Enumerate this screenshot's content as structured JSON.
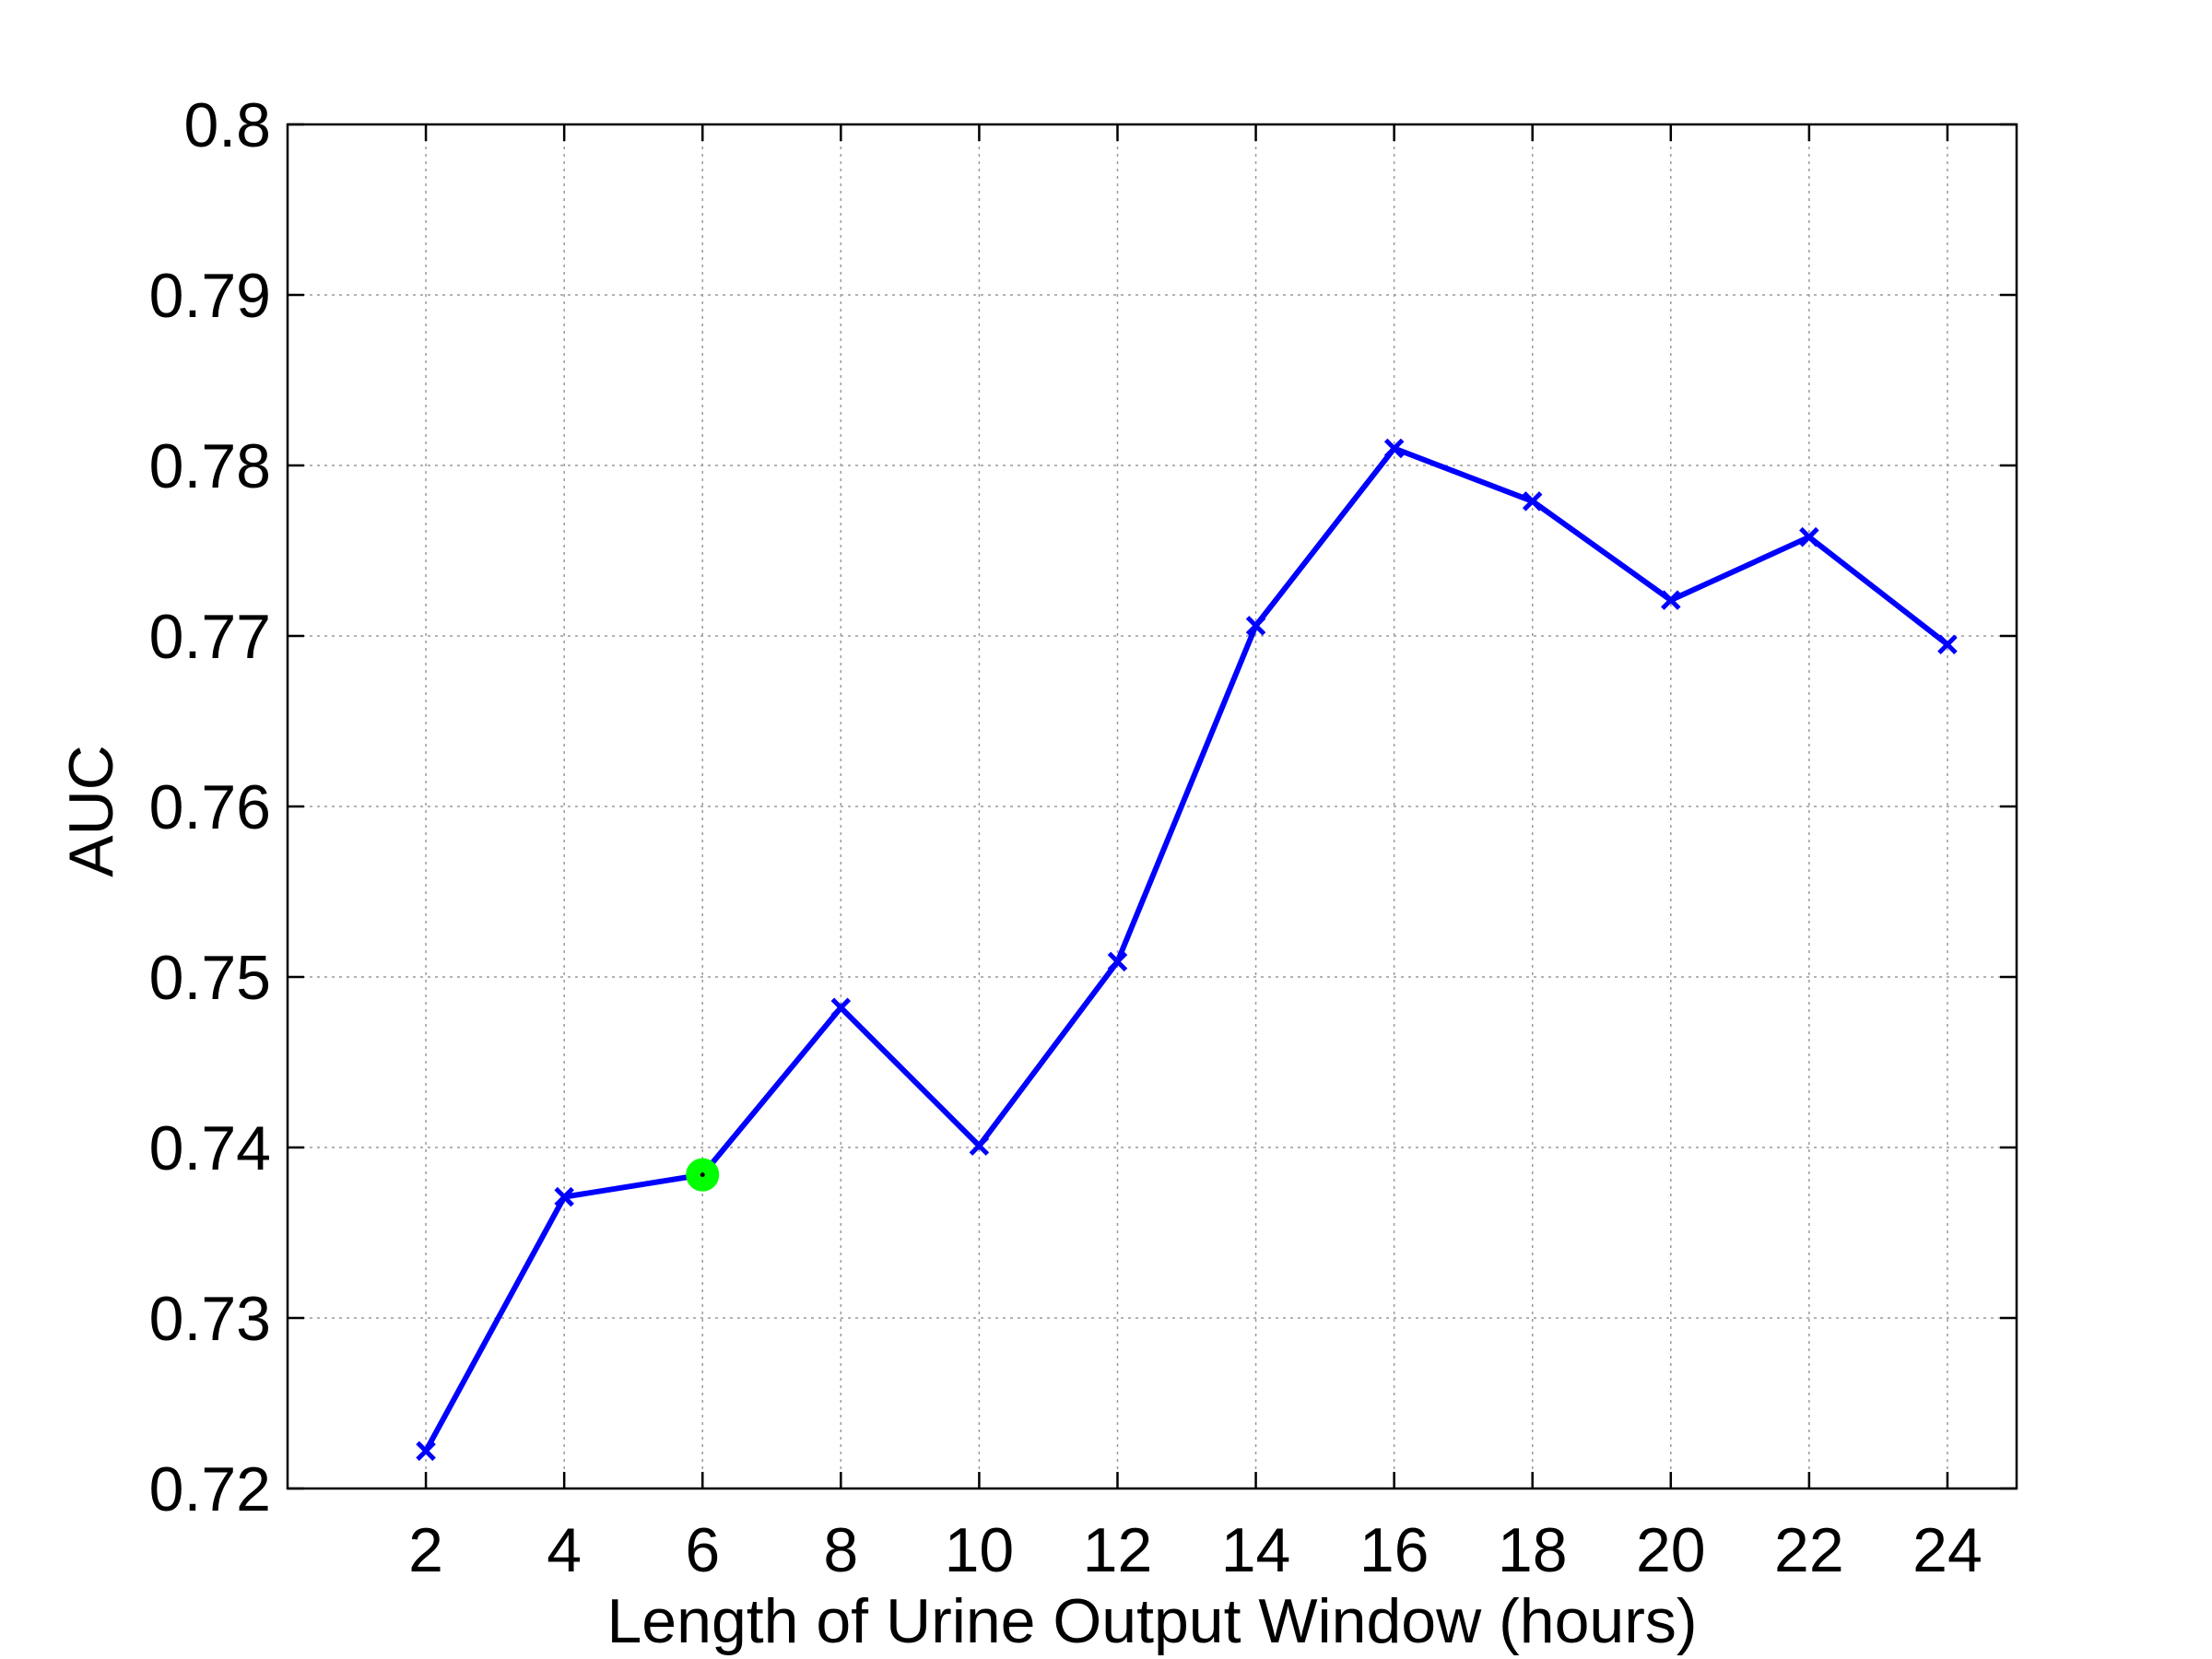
{
  "chart_data": {
    "type": "line",
    "title": "",
    "xlabel": "Length of Urine Output Window (hours)",
    "ylabel": "AUC",
    "xlim": [
      0,
      25
    ],
    "ylim": [
      0.72,
      0.8
    ],
    "grid": true,
    "x_ticks": [
      2,
      4,
      6,
      8,
      10,
      12,
      14,
      16,
      18,
      20,
      22,
      24
    ],
    "x_tick_labels": [
      "2",
      "4",
      "6",
      "8",
      "10",
      "12",
      "14",
      "16",
      "18",
      "20",
      "22",
      "24"
    ],
    "y_ticks": [
      0.72,
      0.73,
      0.74,
      0.75,
      0.76,
      0.77,
      0.78,
      0.79,
      0.8
    ],
    "y_tick_labels": [
      "0.72",
      "0.73",
      "0.74",
      "0.75",
      "0.76",
      "0.77",
      "0.78",
      "0.79",
      "0.8"
    ],
    "series": [
      {
        "x": [
          2,
          4,
          6,
          8,
          10,
          12,
          14,
          16,
          18,
          20,
          22,
          24
        ],
        "y": [
          0.7222,
          0.7371,
          0.7384,
          0.7482,
          0.7401,
          0.7509,
          0.7706,
          0.781,
          0.7779,
          0.7721,
          0.7758,
          0.7695
        ],
        "color": "#0000ff",
        "marker": "x"
      }
    ],
    "highlight": {
      "x": 6,
      "y": 0.7384,
      "color": "#00ff00",
      "marker": "circle"
    }
  }
}
